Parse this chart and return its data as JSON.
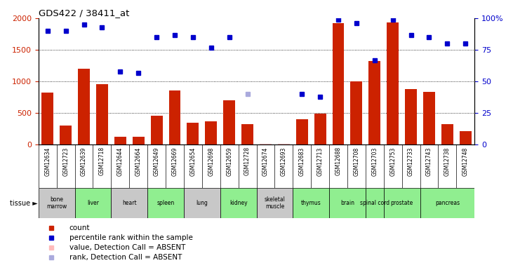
{
  "title": "GDS422 / 38411_at",
  "samples": [
    "GSM12634",
    "GSM12723",
    "GSM12639",
    "GSM12718",
    "GSM12644",
    "GSM12664",
    "GSM12649",
    "GSM12669",
    "GSM12654",
    "GSM12698",
    "GSM12659",
    "GSM12728",
    "GSM12674",
    "GSM12693",
    "GSM12683",
    "GSM12713",
    "GSM12688",
    "GSM12708",
    "GSM12703",
    "GSM12753",
    "GSM12733",
    "GSM12743",
    "GSM12738",
    "GSM12748"
  ],
  "counts": [
    820,
    300,
    1200,
    960,
    130,
    125,
    460,
    860,
    350,
    370,
    700,
    320,
    10,
    10,
    400,
    490,
    1920,
    1000,
    1320,
    1940,
    880,
    840,
    330,
    210
  ],
  "percentile": [
    90,
    90,
    95,
    93,
    58,
    57,
    85,
    87,
    85,
    77,
    85,
    null,
    null,
    null,
    40,
    38,
    99,
    96,
    67,
    99,
    87,
    85,
    80,
    80
  ],
  "absent_value": [
    null,
    null,
    null,
    null,
    null,
    null,
    null,
    null,
    null,
    null,
    null,
    null,
    10,
    10,
    null,
    null,
    null,
    null,
    null,
    null,
    null,
    null,
    null,
    null
  ],
  "absent_rank_pct": [
    null,
    null,
    null,
    null,
    null,
    null,
    null,
    null,
    null,
    null,
    null,
    40,
    null,
    null,
    null,
    null,
    null,
    null,
    null,
    null,
    null,
    null,
    null,
    null
  ],
  "tissue_groups": [
    {
      "label": "bone\nmarrow",
      "color": "#c8c8c8",
      "start": 0,
      "end": 2
    },
    {
      "label": "liver",
      "color": "#90ee90",
      "start": 2,
      "end": 4
    },
    {
      "label": "heart",
      "color": "#c8c8c8",
      "start": 4,
      "end": 6
    },
    {
      "label": "spleen",
      "color": "#90ee90",
      "start": 6,
      "end": 8
    },
    {
      "label": "lung",
      "color": "#c8c8c8",
      "start": 8,
      "end": 10
    },
    {
      "label": "kidney",
      "color": "#90ee90",
      "start": 10,
      "end": 12
    },
    {
      "label": "skeletal\nmuscle",
      "color": "#c8c8c8",
      "start": 12,
      "end": 14
    },
    {
      "label": "thymus",
      "color": "#90ee90",
      "start": 14,
      "end": 16
    },
    {
      "label": "brain",
      "color": "#90ee90",
      "start": 16,
      "end": 18
    },
    {
      "label": "spinal cord",
      "color": "#90ee90",
      "start": 18,
      "end": 19
    },
    {
      "label": "prostate",
      "color": "#90ee90",
      "start": 19,
      "end": 21
    },
    {
      "label": "pancreas",
      "color": "#90ee90",
      "start": 21,
      "end": 24
    }
  ],
  "bar_color": "#cc2200",
  "dot_color": "#0000cc",
  "absent_val_color": "#ffbbbb",
  "absent_rank_color": "#aaaadd",
  "ylim_left": [
    0,
    2000
  ],
  "ylim_right": [
    0,
    100
  ],
  "yticks_left": [
    0,
    500,
    1000,
    1500,
    2000
  ],
  "yticks_right": [
    0,
    25,
    50,
    75,
    100
  ]
}
